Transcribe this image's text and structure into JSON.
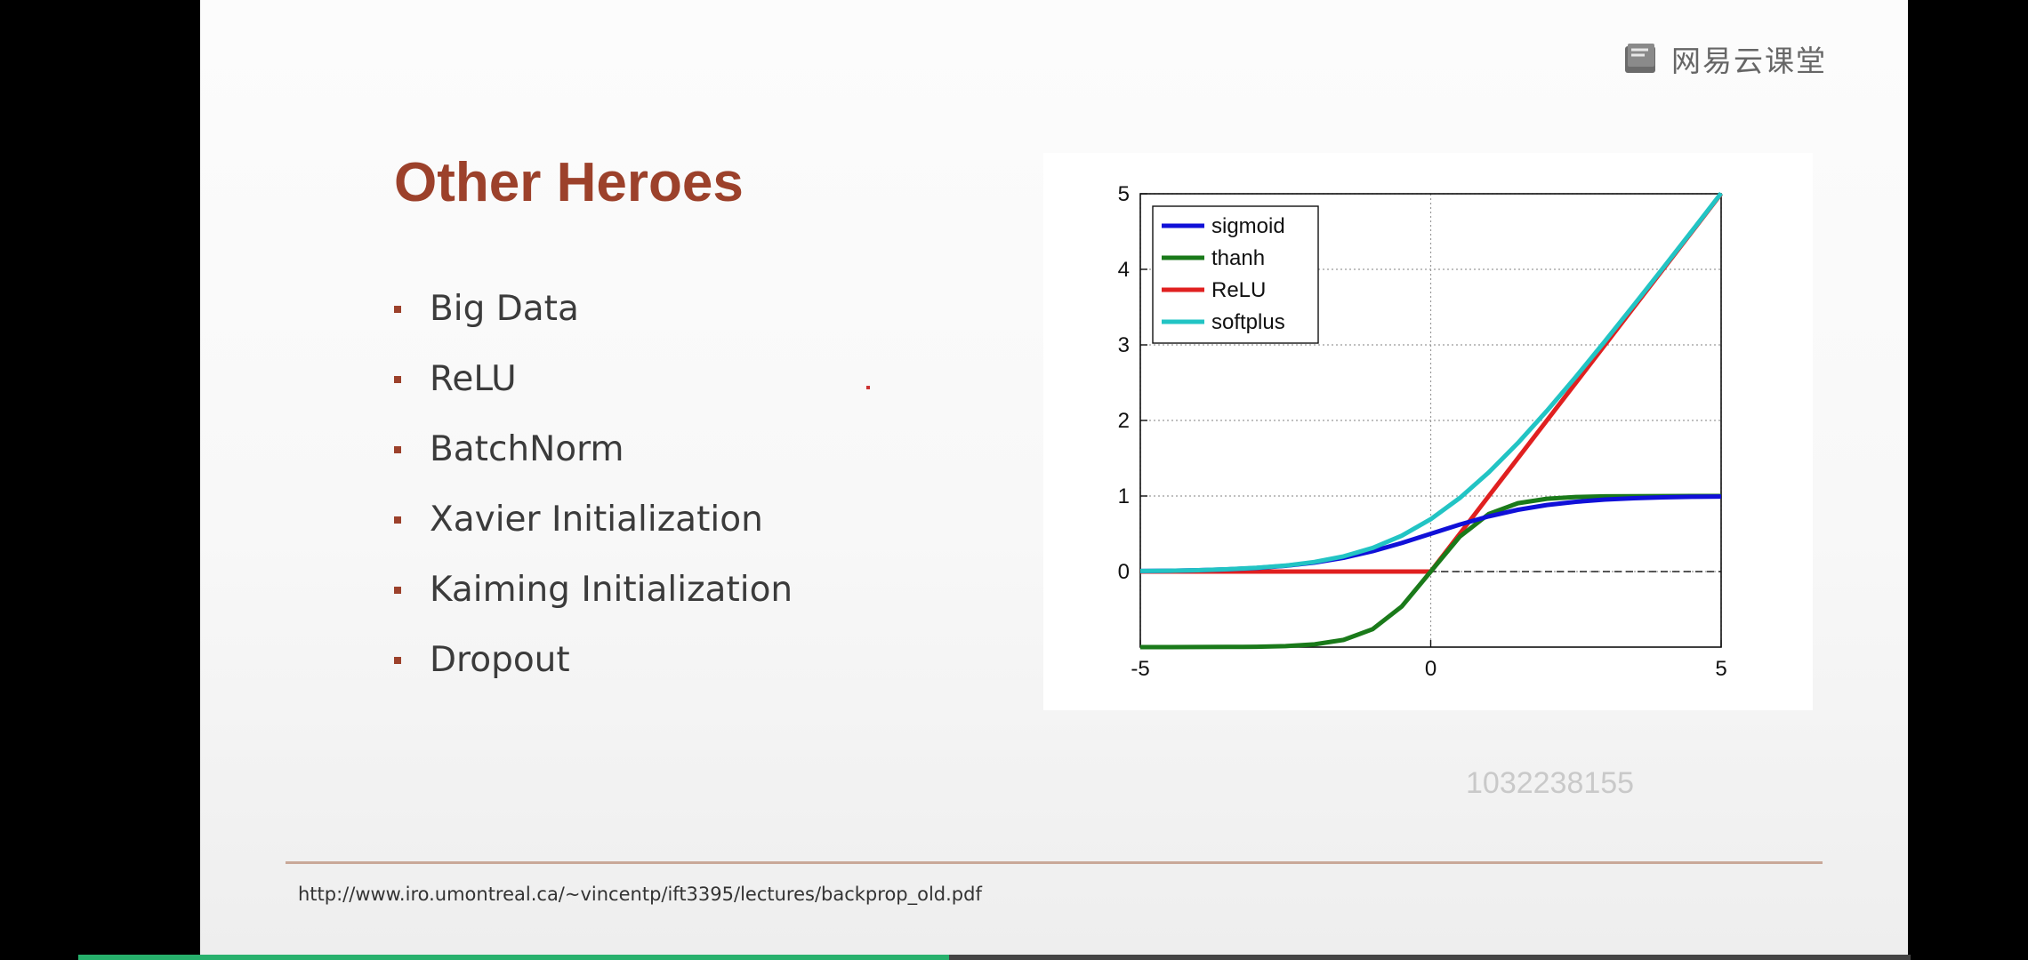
{
  "brand": {
    "logo_text": "网易云课堂",
    "icon": "book-icon"
  },
  "slide": {
    "title": "Other Heroes",
    "bullets": [
      "Big Data",
      "ReLU",
      "BatchNorm",
      "Xavier Initialization",
      "Kaiming Initialization",
      "Dropout"
    ],
    "watermark": "1032238155",
    "source_url": "http://www.iro.umontreal.ca/~vincentp/ift3395/lectures/backprop_old.pdf"
  },
  "colors": {
    "title": "#9c412b",
    "sigmoid": "#1010d8",
    "thanh": "#1a7a1a",
    "relu": "#e02020",
    "softplus": "#22c4c4",
    "progress": "#27b06c"
  },
  "playback": {
    "progress": 0.475
  },
  "chart_data": {
    "type": "line",
    "title": "",
    "xlabel": "",
    "ylabel": "",
    "xlim": [
      -5,
      5
    ],
    "ylim": [
      -1,
      5
    ],
    "xticks": [
      -5,
      0,
      5
    ],
    "yticks": [
      0,
      1,
      2,
      3,
      4,
      5
    ],
    "grid": true,
    "legend": "top-left",
    "x": [
      -5,
      -4.5,
      -4,
      -3.5,
      -3,
      -2.5,
      -2,
      -1.5,
      -1,
      -0.5,
      0,
      0.5,
      1,
      1.5,
      2,
      2.5,
      3,
      3.5,
      4,
      4.5,
      5
    ],
    "series": [
      {
        "name": "sigmoid",
        "color": "#1010d8",
        "values": [
          0.007,
          0.011,
          0.018,
          0.029,
          0.047,
          0.076,
          0.119,
          0.182,
          0.269,
          0.378,
          0.5,
          0.622,
          0.731,
          0.818,
          0.881,
          0.924,
          0.953,
          0.971,
          0.982,
          0.989,
          0.993
        ]
      },
      {
        "name": "thanh",
        "color": "#1a7a1a",
        "values": [
          -1.0,
          -1.0,
          -0.999,
          -0.998,
          -0.995,
          -0.987,
          -0.964,
          -0.905,
          -0.762,
          -0.462,
          0.0,
          0.462,
          0.762,
          0.905,
          0.964,
          0.987,
          0.995,
          0.998,
          0.999,
          1.0,
          1.0
        ]
      },
      {
        "name": "ReLU",
        "color": "#e02020",
        "values": [
          0,
          0,
          0,
          0,
          0,
          0,
          0,
          0,
          0,
          0,
          0,
          0.5,
          1,
          1.5,
          2,
          2.5,
          3,
          3.5,
          4,
          4.5,
          5
        ]
      },
      {
        "name": "softplus",
        "color": "#22c4c4",
        "values": [
          0.007,
          0.011,
          0.018,
          0.03,
          0.049,
          0.079,
          0.127,
          0.201,
          0.313,
          0.474,
          0.693,
          0.974,
          1.313,
          1.701,
          2.127,
          2.579,
          3.049,
          3.53,
          4.018,
          4.511,
          5.007
        ]
      }
    ]
  }
}
